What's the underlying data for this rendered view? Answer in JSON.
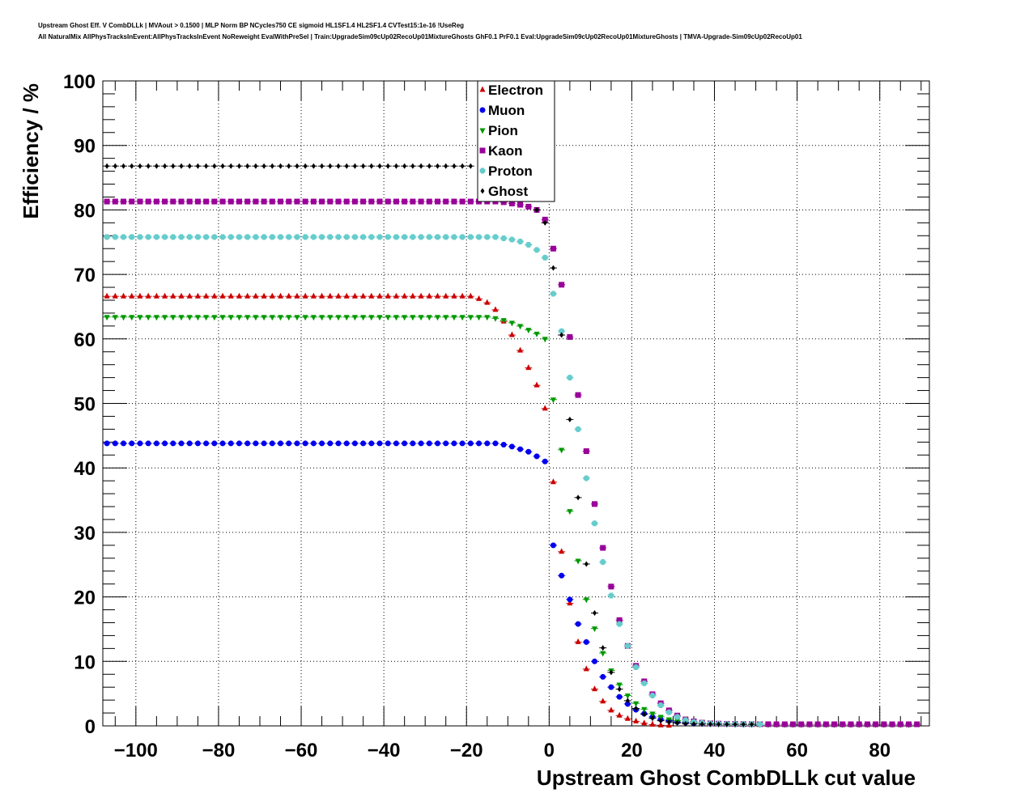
{
  "header": {
    "line1": "Upstream Ghost Eff. V CombDLLk | MVAout > 0.1500 | MLP Norm BP NCycles750 CE sigmoid HL1SF1.4 HL2SF1.4 CVTest15:1e-16 !UseReg",
    "line2": "All NaturalMix AllPhysTracksInEvent:AllPhysTracksInEvent NoReweight EvalWithPreSel | Train:UpgradeSim09cUp02RecoUp01MixtureGhosts GhF0.1 PrF0.1 Eval:UpgradeSim09cUp02RecoUp01MixtureGhosts | TMVA-Upgrade-Sim09cUp02RecoUp01"
  },
  "chart_data": {
    "type": "scatter",
    "xlabel": "Upstream Ghost CombDLLk cut value",
    "ylabel": "Efficiency / %",
    "xlim": [
      -108,
      92
    ],
    "ylim": [
      0,
      100
    ],
    "x_ticks": [
      -100,
      -80,
      -60,
      -40,
      -20,
      0,
      20,
      40,
      60,
      80
    ],
    "x_tick_labels": [
      "−100",
      "−80",
      "−60",
      "−40",
      "−20",
      "0",
      "20",
      "40",
      "60",
      "80"
    ],
    "y_ticks": [
      0,
      10,
      20,
      30,
      40,
      50,
      60,
      70,
      80,
      90,
      100
    ],
    "y_tick_labels": [
      "0",
      "10",
      "20",
      "30",
      "40",
      "50",
      "60",
      "70",
      "80",
      "90",
      "100"
    ],
    "grid": true,
    "legend_position": "top-center",
    "series": [
      {
        "name": "Electron",
        "color": "#cc0000",
        "marker": "triangle-up",
        "plateau": 66.6,
        "plateau_end": -19,
        "points": [
          [
            -17,
            66.2
          ],
          [
            -15,
            65.6
          ],
          [
            -13,
            64.5
          ],
          [
            -11,
            62.7
          ],
          [
            -9,
            60.6
          ],
          [
            -7,
            58.2
          ],
          [
            -5,
            55.5
          ],
          [
            -3,
            52.8
          ],
          [
            -1,
            49.2
          ],
          [
            1,
            37.8
          ],
          [
            3,
            27.0
          ],
          [
            5,
            19.0
          ],
          [
            7,
            13.0
          ],
          [
            9,
            8.8
          ],
          [
            11,
            5.7
          ],
          [
            13,
            3.8
          ],
          [
            15,
            2.4
          ],
          [
            17,
            1.6
          ],
          [
            19,
            1.1
          ],
          [
            21,
            0.7
          ],
          [
            23,
            0.4
          ],
          [
            25,
            0.2
          ],
          [
            27,
            0.1
          ],
          [
            29,
            0.05
          ]
        ]
      },
      {
        "name": "Muon",
        "color": "#0000ee",
        "marker": "circle",
        "plateau": 43.8,
        "plateau_end": -13,
        "points": [
          [
            -11,
            43.6
          ],
          [
            -9,
            43.3
          ],
          [
            -7,
            42.9
          ],
          [
            -5,
            42.5
          ],
          [
            -3,
            41.8
          ],
          [
            -1,
            41.0
          ],
          [
            1,
            28.0
          ],
          [
            3,
            23.3
          ],
          [
            5,
            19.6
          ],
          [
            7,
            15.8
          ],
          [
            9,
            13.0
          ],
          [
            11,
            10.0
          ],
          [
            13,
            7.6
          ],
          [
            15,
            6.0
          ],
          [
            17,
            4.5
          ],
          [
            19,
            3.4
          ],
          [
            21,
            2.5
          ],
          [
            23,
            1.9
          ],
          [
            25,
            1.4
          ],
          [
            27,
            1.0
          ],
          [
            29,
            0.8
          ],
          [
            31,
            0.6
          ],
          [
            33,
            0.5
          ],
          [
            35,
            0.4
          ],
          [
            37,
            0.35
          ],
          [
            39,
            0.3
          ],
          [
            41,
            0.3
          ],
          [
            43,
            0.28
          ],
          [
            45,
            0.26
          ],
          [
            47,
            0.25
          ],
          [
            49,
            0.24
          ],
          [
            51,
            0.24
          ]
        ]
      },
      {
        "name": "Pion",
        "color": "#009900",
        "marker": "triangle-down",
        "plateau": 63.4,
        "plateau_end": -15,
        "points": [
          [
            -13,
            63.2
          ],
          [
            -11,
            62.9
          ],
          [
            -9,
            62.5
          ],
          [
            -7,
            62.0
          ],
          [
            -5,
            61.4
          ],
          [
            -3,
            60.8
          ],
          [
            -1,
            60.0
          ],
          [
            1,
            50.6
          ],
          [
            3,
            42.8
          ],
          [
            5,
            33.3
          ],
          [
            7,
            25.6
          ],
          [
            9,
            19.6
          ],
          [
            11,
            15.1
          ],
          [
            13,
            11.3
          ],
          [
            15,
            8.6
          ],
          [
            17,
            6.4
          ],
          [
            19,
            4.7
          ],
          [
            21,
            3.5
          ],
          [
            23,
            2.6
          ],
          [
            25,
            1.9
          ],
          [
            27,
            1.4
          ],
          [
            29,
            1.0
          ],
          [
            31,
            0.8
          ],
          [
            33,
            0.6
          ],
          [
            35,
            0.5
          ],
          [
            37,
            0.4
          ],
          [
            39,
            0.35
          ],
          [
            41,
            0.3
          ],
          [
            43,
            0.3
          ],
          [
            45,
            0.28
          ],
          [
            47,
            0.26
          ],
          [
            49,
            0.25
          ],
          [
            51,
            0.24
          ],
          [
            53,
            0.24
          ],
          [
            55,
            0.23
          ],
          [
            57,
            0.23
          ],
          [
            59,
            0.23
          ],
          [
            61,
            0.22
          ],
          [
            63,
            0.22
          ],
          [
            65,
            0.22
          ],
          [
            67,
            0.22
          ],
          [
            69,
            0.22
          ],
          [
            71,
            0.22
          ],
          [
            73,
            0.22
          ],
          [
            75,
            0.22
          ],
          [
            77,
            0.22
          ],
          [
            79,
            0.22
          ],
          [
            81,
            0.22
          ],
          [
            83,
            0.22
          ],
          [
            85,
            0.22
          ],
          [
            87,
            0.22
          ]
        ]
      },
      {
        "name": "Kaon",
        "color": "#990099",
        "marker": "square",
        "plateau": 81.3,
        "plateau_end": -13,
        "points": [
          [
            -11,
            81.2
          ],
          [
            -9,
            81.0
          ],
          [
            -7,
            80.8
          ],
          [
            -5,
            80.5
          ],
          [
            -3,
            80.0
          ],
          [
            -1,
            78.5
          ],
          [
            1,
            74.0
          ],
          [
            3,
            68.4
          ],
          [
            5,
            60.3
          ],
          [
            7,
            51.3
          ],
          [
            9,
            42.6
          ],
          [
            11,
            34.4
          ],
          [
            13,
            27.6
          ],
          [
            15,
            21.6
          ],
          [
            17,
            16.4
          ],
          [
            19,
            12.4
          ],
          [
            21,
            9.3
          ],
          [
            23,
            6.9
          ],
          [
            25,
            4.9
          ],
          [
            27,
            3.5
          ],
          [
            29,
            2.4
          ],
          [
            31,
            1.6
          ],
          [
            33,
            1.0
          ],
          [
            35,
            0.7
          ],
          [
            37,
            0.5
          ],
          [
            39,
            0.4
          ],
          [
            41,
            0.35
          ],
          [
            43,
            0.32
          ],
          [
            45,
            0.3
          ],
          [
            47,
            0.28
          ],
          [
            49,
            0.27
          ],
          [
            51,
            0.26
          ],
          [
            53,
            0.26
          ],
          [
            55,
            0.25
          ],
          [
            57,
            0.25
          ],
          [
            59,
            0.25
          ],
          [
            61,
            0.25
          ],
          [
            63,
            0.25
          ],
          [
            65,
            0.25
          ],
          [
            67,
            0.25
          ],
          [
            69,
            0.25
          ],
          [
            71,
            0.25
          ],
          [
            73,
            0.25
          ],
          [
            75,
            0.25
          ],
          [
            77,
            0.25
          ],
          [
            79,
            0.25
          ],
          [
            81,
            0.25
          ],
          [
            83,
            0.25
          ],
          [
            85,
            0.25
          ],
          [
            87,
            0.25
          ],
          [
            89,
            0.25
          ]
        ]
      },
      {
        "name": "Proton",
        "color": "#66cccc",
        "marker": "cross",
        "plateau": 75.8,
        "plateau_end": -13,
        "points": [
          [
            -11,
            75.6
          ],
          [
            -9,
            75.4
          ],
          [
            -7,
            75.1
          ],
          [
            -5,
            74.6
          ],
          [
            -3,
            73.8
          ],
          [
            -1,
            72.6
          ],
          [
            1,
            67.0
          ],
          [
            3,
            61.2
          ],
          [
            5,
            54.0
          ],
          [
            7,
            46.0
          ],
          [
            9,
            38.4
          ],
          [
            11,
            31.4
          ],
          [
            13,
            25.4
          ],
          [
            15,
            20.2
          ],
          [
            17,
            15.8
          ],
          [
            19,
            12.4
          ],
          [
            21,
            9.1
          ],
          [
            23,
            6.6
          ],
          [
            25,
            4.7
          ],
          [
            27,
            3.2
          ],
          [
            29,
            2.1
          ],
          [
            31,
            1.4
          ],
          [
            33,
            0.9
          ],
          [
            35,
            0.6
          ],
          [
            37,
            0.45
          ],
          [
            39,
            0.38
          ],
          [
            41,
            0.33
          ],
          [
            43,
            0.3
          ],
          [
            45,
            0.28
          ],
          [
            47,
            0.27
          ],
          [
            49,
            0.26
          ],
          [
            51,
            0.25
          ]
        ]
      },
      {
        "name": "Ghost",
        "color": "#000000",
        "marker": "diamond",
        "plateau": 86.8,
        "plateau_end": -19,
        "points": [
          [
            -3,
            80.0
          ],
          [
            -1,
            78.0
          ],
          [
            1,
            71.0
          ],
          [
            3,
            60.6
          ],
          [
            5,
            47.5
          ],
          [
            7,
            35.4
          ],
          [
            9,
            25.1
          ],
          [
            11,
            17.5
          ],
          [
            13,
            12.1
          ],
          [
            15,
            8.3
          ],
          [
            17,
            5.7
          ],
          [
            19,
            3.9
          ],
          [
            21,
            2.7
          ],
          [
            23,
            1.8
          ],
          [
            25,
            1.2
          ],
          [
            27,
            0.8
          ],
          [
            29,
            0.6
          ],
          [
            31,
            0.45
          ],
          [
            33,
            0.35
          ],
          [
            35,
            0.3
          ],
          [
            37,
            0.28
          ],
          [
            39,
            0.26
          ],
          [
            41,
            0.25
          ],
          [
            43,
            0.24
          ],
          [
            45,
            0.24
          ],
          [
            47,
            0.24
          ],
          [
            49,
            0.24
          ]
        ]
      }
    ]
  }
}
